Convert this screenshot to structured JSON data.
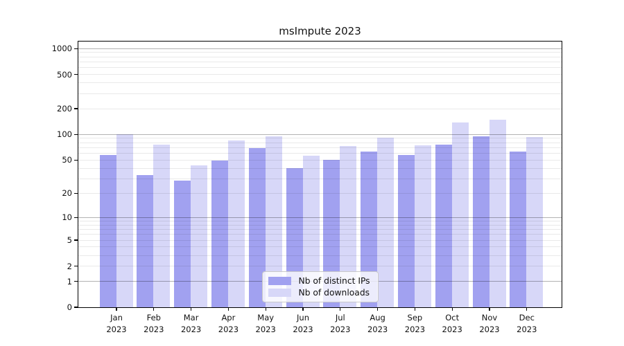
{
  "title": "msImpute 2023",
  "chart_data": {
    "type": "bar",
    "title": "msImpute 2023",
    "categories": [
      "Jan 2023",
      "Feb 2023",
      "Mar 2023",
      "Apr 2023",
      "May 2023",
      "Jun 2023",
      "Jul 2023",
      "Aug 2023",
      "Sep 2023",
      "Oct 2023",
      "Nov 2023",
      "Dec 2023"
    ],
    "series": [
      {
        "name": "Nb of distinct IPs",
        "color": "#a1a1f0",
        "values": [
          57,
          33,
          28,
          49,
          69,
          40,
          50,
          62,
          57,
          76,
          95,
          62
        ]
      },
      {
        "name": "Nb of downloads",
        "color": "#d7d7f8",
        "values": [
          100,
          75,
          43,
          85,
          95,
          56,
          72,
          91,
          74,
          136,
          147,
          93
        ]
      }
    ],
    "xlabel": "",
    "ylabel": "",
    "y_scale": "log1p",
    "y_ticks": [
      1000,
      500,
      200,
      100,
      50,
      20,
      10,
      5,
      2,
      1,
      0
    ],
    "y_major_grid_at": [
      1,
      10,
      100,
      1000
    ],
    "ylim": [
      0,
      1207
    ],
    "grid": true,
    "legend_position": "lower center"
  },
  "colors": {
    "major_grid": "rgba(0,0,0,0.30)",
    "minor_grid": "rgba(0,0,0,0.085)",
    "spine": "#000000",
    "text": "#111111",
    "legend_border": "#c9c9c9",
    "legend_bg": "rgba(255,255,255,0.8)"
  }
}
